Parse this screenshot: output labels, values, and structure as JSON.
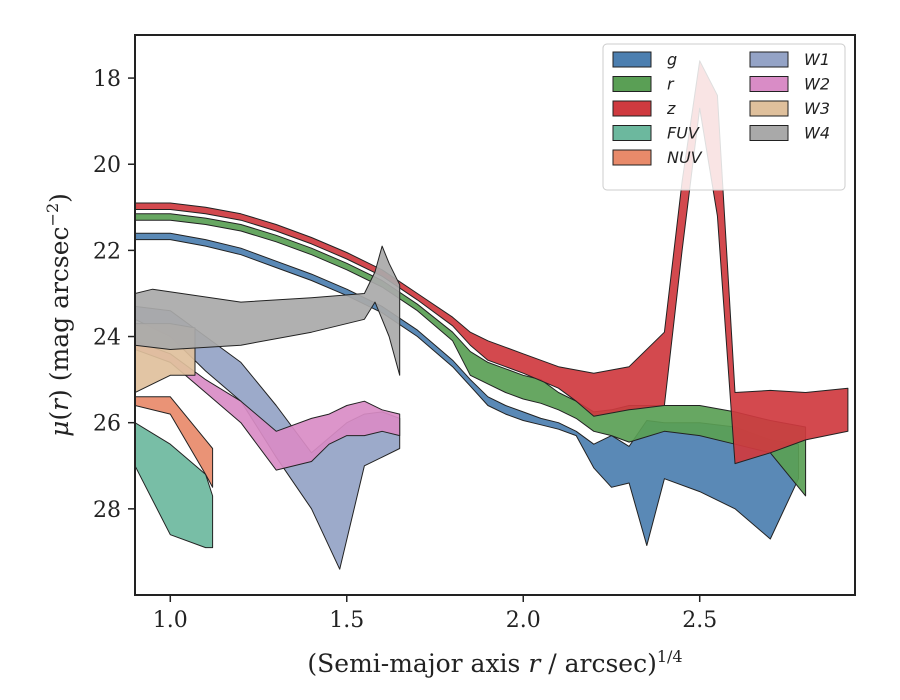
{
  "chart_data": {
    "type": "area",
    "xlabel": "(Semi-major axis r / arcsec)^1/4",
    "ylabel": "μ(r) (mag arcsec^−2)",
    "xlim": [
      0.9,
      2.94
    ],
    "ylim": [
      30.0,
      17.0
    ],
    "y_inverted": true,
    "x_ticks": [
      "1.0",
      "1.5",
      "2.0",
      "2.5"
    ],
    "x_tick_values": [
      1.0,
      1.5,
      2.0,
      2.5
    ],
    "y_ticks": [
      "18",
      "20",
      "22",
      "24",
      "26",
      "28"
    ],
    "y_tick_values": [
      18,
      20,
      22,
      24,
      26,
      28
    ],
    "grid": false,
    "legend_position": "top-right",
    "series": [
      {
        "name": "g",
        "color": "#4c7fb0",
        "upper": [
          [
            0.9,
            21.6
          ],
          [
            1.0,
            21.6
          ],
          [
            1.1,
            21.75
          ],
          [
            1.2,
            21.95
          ],
          [
            1.3,
            22.25
          ],
          [
            1.4,
            22.55
          ],
          [
            1.5,
            22.9
          ],
          [
            1.6,
            23.3
          ],
          [
            1.7,
            23.85
          ],
          [
            1.8,
            24.55
          ],
          [
            1.85,
            25.0
          ],
          [
            1.9,
            25.4
          ],
          [
            1.95,
            25.6
          ],
          [
            2.0,
            25.75
          ],
          [
            2.05,
            25.9
          ],
          [
            2.1,
            26.0
          ],
          [
            2.15,
            26.2
          ],
          [
            2.2,
            26.5
          ],
          [
            2.25,
            26.3
          ],
          [
            2.3,
            26.55
          ],
          [
            2.35,
            25.95
          ],
          [
            2.4,
            26.0
          ],
          [
            2.45,
            26.0
          ],
          [
            2.5,
            26.0
          ],
          [
            2.6,
            26.1
          ],
          [
            2.7,
            26.4
          ],
          [
            2.78,
            26.5
          ]
        ],
        "lower": [
          [
            0.9,
            21.75
          ],
          [
            1.0,
            21.75
          ],
          [
            1.1,
            21.9
          ],
          [
            1.2,
            22.1
          ],
          [
            1.3,
            22.4
          ],
          [
            1.4,
            22.7
          ],
          [
            1.5,
            23.05
          ],
          [
            1.6,
            23.45
          ],
          [
            1.7,
            24.0
          ],
          [
            1.8,
            24.7
          ],
          [
            1.85,
            25.15
          ],
          [
            1.9,
            25.6
          ],
          [
            1.95,
            25.8
          ],
          [
            2.0,
            25.95
          ],
          [
            2.05,
            26.05
          ],
          [
            2.1,
            26.15
          ],
          [
            2.15,
            26.3
          ],
          [
            2.2,
            27.05
          ],
          [
            2.25,
            27.5
          ],
          [
            2.3,
            27.4
          ],
          [
            2.35,
            28.85
          ],
          [
            2.4,
            27.3
          ],
          [
            2.5,
            27.6
          ],
          [
            2.6,
            28.0
          ],
          [
            2.7,
            28.7
          ],
          [
            2.78,
            27.3
          ]
        ]
      },
      {
        "name": "r",
        "color": "#5a9f55",
        "upper": [
          [
            0.9,
            21.15
          ],
          [
            1.0,
            21.15
          ],
          [
            1.1,
            21.25
          ],
          [
            1.2,
            21.4
          ],
          [
            1.3,
            21.65
          ],
          [
            1.4,
            21.95
          ],
          [
            1.5,
            22.3
          ],
          [
            1.6,
            22.7
          ],
          [
            1.7,
            23.25
          ],
          [
            1.8,
            23.9
          ],
          [
            1.85,
            24.35
          ],
          [
            1.9,
            24.6
          ],
          [
            1.95,
            24.75
          ],
          [
            2.0,
            24.9
          ],
          [
            2.05,
            25.0
          ],
          [
            2.1,
            25.3
          ],
          [
            2.15,
            25.5
          ],
          [
            2.2,
            25.75
          ],
          [
            2.25,
            25.7
          ],
          [
            2.3,
            25.6
          ],
          [
            2.4,
            25.6
          ],
          [
            2.5,
            25.6
          ],
          [
            2.6,
            25.75
          ],
          [
            2.7,
            25.95
          ],
          [
            2.8,
            26.1
          ]
        ],
        "lower": [
          [
            0.9,
            21.3
          ],
          [
            1.0,
            21.3
          ],
          [
            1.1,
            21.4
          ],
          [
            1.2,
            21.55
          ],
          [
            1.3,
            21.8
          ],
          [
            1.4,
            22.1
          ],
          [
            1.5,
            22.45
          ],
          [
            1.6,
            22.85
          ],
          [
            1.7,
            23.4
          ],
          [
            1.8,
            24.1
          ],
          [
            1.85,
            24.9
          ],
          [
            1.9,
            25.1
          ],
          [
            1.95,
            25.3
          ],
          [
            2.0,
            25.45
          ],
          [
            2.05,
            25.55
          ],
          [
            2.1,
            25.7
          ],
          [
            2.15,
            25.9
          ],
          [
            2.2,
            26.2
          ],
          [
            2.25,
            26.3
          ],
          [
            2.3,
            26.45
          ],
          [
            2.4,
            26.2
          ],
          [
            2.5,
            26.3
          ],
          [
            2.6,
            26.5
          ],
          [
            2.7,
            26.7
          ],
          [
            2.8,
            27.7
          ]
        ]
      },
      {
        "name": "z",
        "color": "#cf3a3f",
        "upper": [
          [
            0.9,
            20.9
          ],
          [
            1.0,
            20.9
          ],
          [
            1.1,
            21.0
          ],
          [
            1.2,
            21.15
          ],
          [
            1.3,
            21.4
          ],
          [
            1.4,
            21.7
          ],
          [
            1.5,
            22.05
          ],
          [
            1.6,
            22.45
          ],
          [
            1.7,
            23.0
          ],
          [
            1.8,
            23.55
          ],
          [
            1.85,
            23.9
          ],
          [
            1.9,
            24.1
          ],
          [
            1.95,
            24.25
          ],
          [
            2.0,
            24.4
          ],
          [
            2.1,
            24.7
          ],
          [
            2.2,
            24.85
          ],
          [
            2.3,
            24.7
          ],
          [
            2.4,
            23.9
          ],
          [
            2.45,
            20.4
          ],
          [
            2.5,
            17.6
          ],
          [
            2.55,
            18.4
          ],
          [
            2.6,
            25.3
          ],
          [
            2.7,
            25.25
          ],
          [
            2.8,
            25.3
          ],
          [
            2.92,
            25.2
          ]
        ],
        "lower": [
          [
            0.9,
            21.05
          ],
          [
            1.0,
            21.05
          ],
          [
            1.1,
            21.15
          ],
          [
            1.2,
            21.3
          ],
          [
            1.3,
            21.55
          ],
          [
            1.4,
            21.85
          ],
          [
            1.5,
            22.2
          ],
          [
            1.6,
            22.6
          ],
          [
            1.7,
            23.15
          ],
          [
            1.8,
            23.75
          ],
          [
            1.85,
            24.2
          ],
          [
            1.9,
            24.55
          ],
          [
            1.95,
            24.7
          ],
          [
            2.0,
            24.85
          ],
          [
            2.1,
            25.2
          ],
          [
            2.15,
            25.5
          ],
          [
            2.2,
            25.85
          ],
          [
            2.3,
            25.7
          ],
          [
            2.4,
            25.6
          ],
          [
            2.45,
            22.0
          ],
          [
            2.5,
            18.7
          ],
          [
            2.55,
            21.2
          ],
          [
            2.6,
            26.95
          ],
          [
            2.7,
            26.7
          ],
          [
            2.8,
            26.4
          ],
          [
            2.92,
            26.2
          ]
        ]
      },
      {
        "name": "FUV",
        "color": "#6cb89e",
        "upper": [
          [
            0.9,
            26.0
          ],
          [
            1.0,
            26.5
          ],
          [
            1.1,
            27.2
          ],
          [
            1.12,
            27.7
          ]
        ],
        "lower": [
          [
            0.9,
            27.0
          ],
          [
            1.0,
            28.6
          ],
          [
            1.1,
            28.9
          ],
          [
            1.12,
            28.9
          ]
        ]
      },
      {
        "name": "NUV",
        "color": "#e88a6a",
        "upper": [
          [
            0.9,
            25.4
          ],
          [
            1.0,
            25.4
          ],
          [
            1.1,
            26.4
          ],
          [
            1.12,
            26.6
          ]
        ],
        "lower": [
          [
            0.9,
            25.6
          ],
          [
            1.0,
            25.8
          ],
          [
            1.1,
            27.2
          ],
          [
            1.12,
            27.5
          ]
        ]
      },
      {
        "name": "W1",
        "color": "#94a3c6",
        "upper": [
          [
            0.9,
            23.3
          ],
          [
            1.0,
            23.4
          ],
          [
            1.1,
            24.0
          ],
          [
            1.2,
            24.6
          ],
          [
            1.3,
            25.6
          ],
          [
            1.4,
            26.7
          ],
          [
            1.5,
            26.0
          ],
          [
            1.55,
            25.8
          ],
          [
            1.6,
            25.75
          ],
          [
            1.65,
            25.9
          ]
        ],
        "lower": [
          [
            0.9,
            23.6
          ],
          [
            1.0,
            24.0
          ],
          [
            1.1,
            24.8
          ],
          [
            1.2,
            25.5
          ],
          [
            1.3,
            26.8
          ],
          [
            1.4,
            28.0
          ],
          [
            1.48,
            29.4
          ],
          [
            1.55,
            27.0
          ],
          [
            1.6,
            26.8
          ],
          [
            1.65,
            26.6
          ]
        ]
      },
      {
        "name": "W2",
        "color": "#d98cc6",
        "upper": [
          [
            0.9,
            24.1
          ],
          [
            1.0,
            24.4
          ],
          [
            1.1,
            25.0
          ],
          [
            1.2,
            25.5
          ],
          [
            1.3,
            26.2
          ],
          [
            1.4,
            25.9
          ],
          [
            1.45,
            25.8
          ],
          [
            1.5,
            25.6
          ],
          [
            1.55,
            25.5
          ],
          [
            1.6,
            25.7
          ],
          [
            1.65,
            25.8
          ]
        ],
        "lower": [
          [
            0.9,
            24.3
          ],
          [
            1.0,
            24.6
          ],
          [
            1.1,
            25.3
          ],
          [
            1.2,
            26.0
          ],
          [
            1.3,
            27.1
          ],
          [
            1.4,
            26.9
          ],
          [
            1.45,
            26.5
          ],
          [
            1.5,
            26.3
          ],
          [
            1.55,
            26.3
          ],
          [
            1.6,
            26.2
          ],
          [
            1.65,
            26.3
          ]
        ]
      },
      {
        "name": "W3",
        "color": "#dfc09c",
        "upper": [
          [
            0.9,
            23.7
          ],
          [
            1.0,
            23.7
          ],
          [
            1.07,
            23.8
          ]
        ],
        "lower": [
          [
            0.9,
            25.3
          ],
          [
            1.0,
            24.9
          ],
          [
            1.07,
            24.9
          ]
        ]
      },
      {
        "name": "W4",
        "color": "#a9a9a9",
        "upper": [
          [
            0.9,
            23.0
          ],
          [
            0.95,
            22.9
          ],
          [
            1.2,
            23.2
          ],
          [
            1.4,
            23.1
          ],
          [
            1.55,
            23.0
          ],
          [
            1.58,
            22.5
          ],
          [
            1.6,
            21.9
          ],
          [
            1.62,
            22.3
          ],
          [
            1.65,
            22.8
          ]
        ],
        "lower": [
          [
            0.9,
            24.2
          ],
          [
            1.0,
            24.3
          ],
          [
            1.2,
            24.2
          ],
          [
            1.4,
            23.9
          ],
          [
            1.55,
            23.6
          ],
          [
            1.58,
            23.2
          ],
          [
            1.6,
            23.6
          ],
          [
            1.62,
            24.0
          ],
          [
            1.65,
            24.9
          ]
        ]
      }
    ]
  }
}
